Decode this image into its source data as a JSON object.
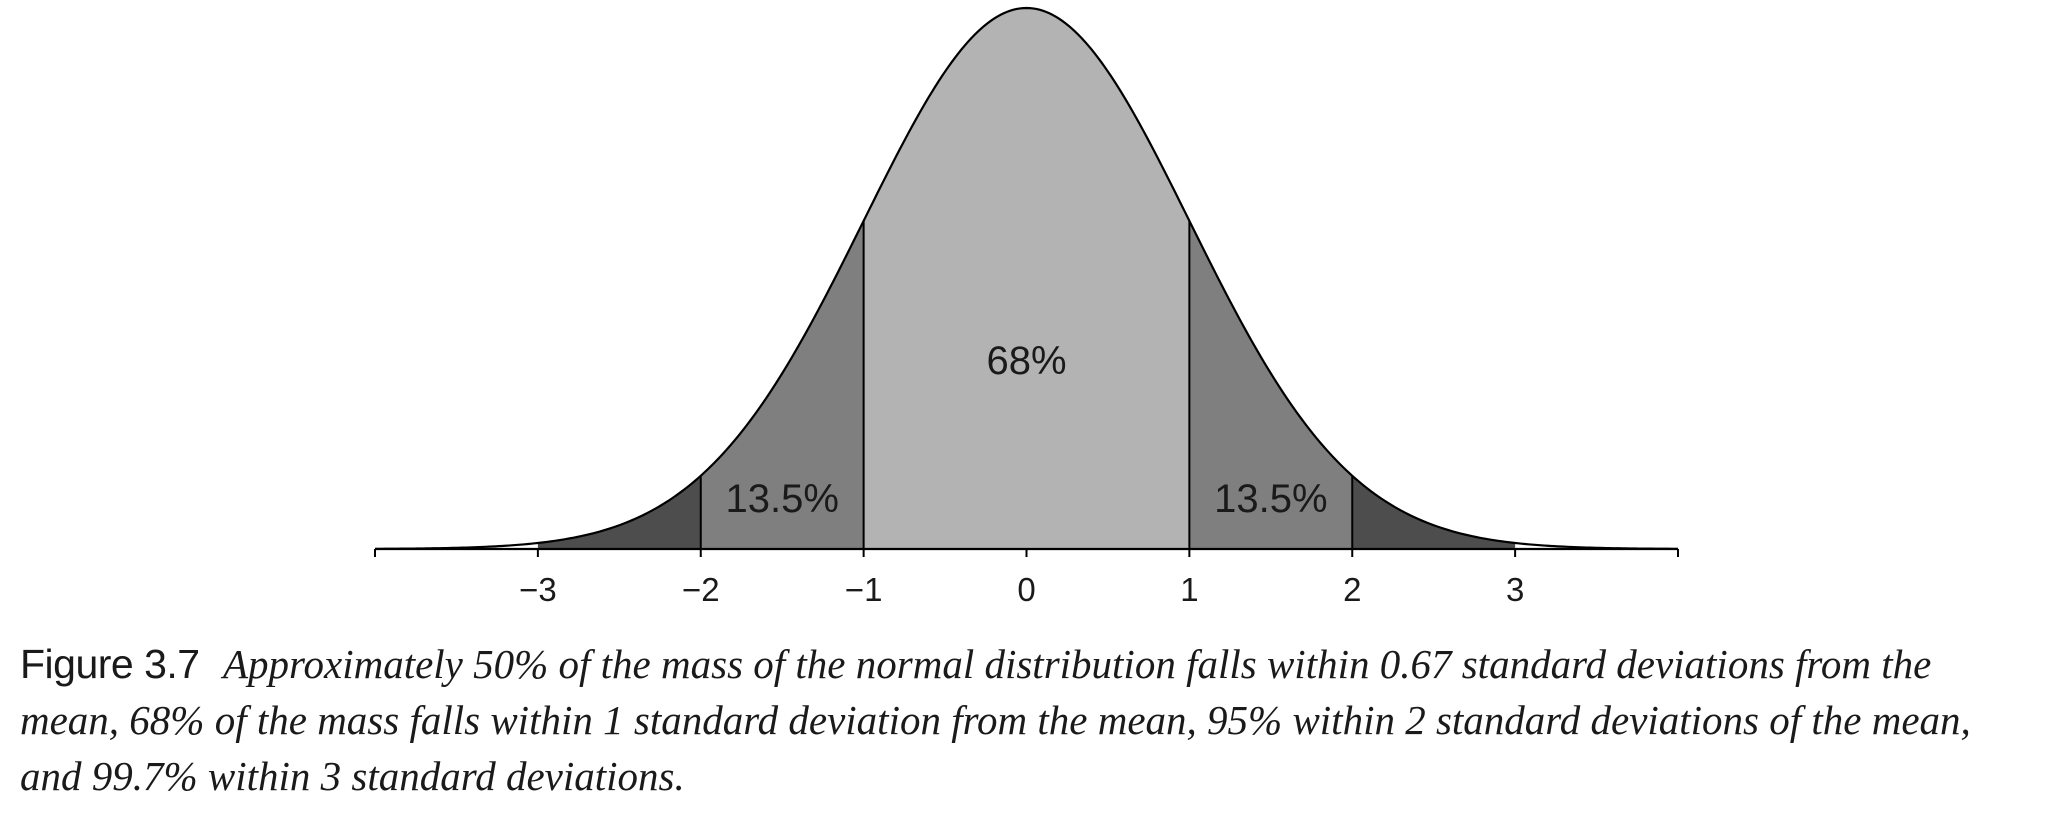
{
  "chart_data": {
    "type": "area",
    "distribution": "standard normal",
    "xlim": [
      -4,
      4
    ],
    "x_ticks": [
      -3,
      -2,
      -1,
      0,
      1,
      2,
      3
    ],
    "x_tick_labels": [
      "−3",
      "−2",
      "−1",
      "0",
      "1",
      "2",
      "3"
    ],
    "regions": [
      {
        "from": -3,
        "to": -2,
        "shade": "dark"
      },
      {
        "from": -2,
        "to": -1,
        "shade": "medium",
        "label": "13.5%"
      },
      {
        "from": -1,
        "to": 1,
        "shade": "light",
        "label": "68%"
      },
      {
        "from": 1,
        "to": 2,
        "shade": "medium",
        "label": "13.5%"
      },
      {
        "from": 2,
        "to": 3,
        "shade": "dark"
      }
    ],
    "colors": {
      "light": "#b3b3b3",
      "medium": "#7f7f7f",
      "dark": "#4d4d4d",
      "curve": "#000000"
    },
    "grid": false
  },
  "caption": {
    "label": "Figure 3.7",
    "text": "Approximately 50% of the mass of the normal distribution falls within 0.67 standard deviations from the mean, 68% of the mass falls within 1 standard deviation from the mean, 95% within 2 standard deviations of the mean, and 99.7% within 3 standard deviations."
  }
}
